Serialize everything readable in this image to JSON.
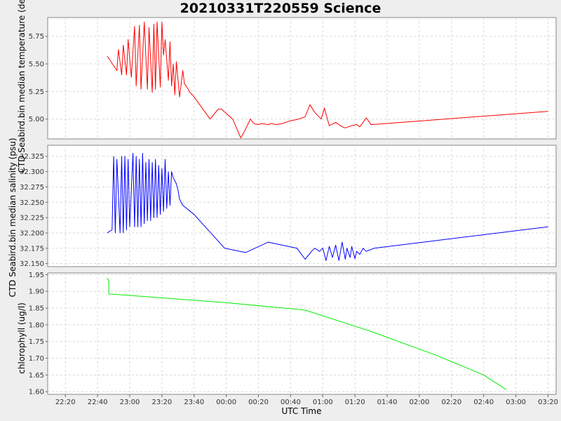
{
  "chart_data": {
    "title": "20210331T220559 Science",
    "type": "line",
    "x_axis": {
      "label": "UTC Time",
      "tick_labels": [
        "22:20",
        "22:40",
        "23:00",
        "23:20",
        "23:40",
        "00:00",
        "00:20",
        "00:40",
        "01:00",
        "01:20",
        "01:40",
        "02:00",
        "02:20",
        "02:40",
        "03:00",
        "03:20"
      ],
      "tick_minutes": [
        -100,
        -80,
        -60,
        -40,
        -20,
        0,
        20,
        40,
        60,
        80,
        100,
        120,
        140,
        160,
        180,
        200
      ],
      "range_minutes": [
        -111,
        205
      ]
    },
    "grid": true,
    "panels": [
      {
        "ylabel": "CTD Seabird.bin median temperature (degC)",
        "ylim": [
          4.82,
          5.92
        ],
        "yticks": [
          5.0,
          5.25,
          5.5,
          5.75
        ],
        "ytick_labels": [
          "5.00",
          "5.25",
          "5.50",
          "5.75"
        ],
        "series": [
          {
            "color": "#ff0000",
            "x": [
              -74,
              -68,
              -67,
              -65,
              -64,
              -62,
              -61,
              -59,
              -57,
              -56,
              -54,
              -53,
              -51,
              -49,
              -48,
              -46,
              -45,
              -44,
              -43,
              -41,
              -40,
              -39,
              -38,
              -36,
              -35,
              -34,
              -33,
              -32,
              -31,
              -29,
              -27,
              -26,
              -25,
              -24,
              -23,
              -20,
              -10,
              -5,
              -3,
              0,
              4,
              9,
              11,
              15,
              17,
              20,
              22,
              26,
              28,
              31,
              35,
              39,
              45,
              49,
              52,
              55,
              59,
              61,
              64,
              68,
              72,
              74,
              76,
              78,
              81,
              83,
              85,
              87,
              90,
              200
            ],
            "y": [
              5.57,
              5.44,
              5.63,
              5.4,
              5.67,
              5.4,
              5.72,
              5.38,
              5.84,
              5.3,
              5.85,
              5.27,
              5.88,
              5.27,
              5.83,
              5.24,
              5.86,
              5.27,
              5.88,
              5.29,
              5.88,
              5.58,
              5.72,
              5.35,
              5.7,
              5.3,
              5.5,
              5.22,
              5.52,
              5.2,
              5.44,
              5.32,
              5.3,
              5.28,
              5.25,
              5.2,
              5.0,
              5.09,
              5.09,
              5.05,
              5.0,
              4.83,
              4.88,
              5.0,
              4.96,
              4.95,
              4.96,
              4.95,
              4.96,
              4.95,
              4.96,
              4.98,
              5.0,
              5.02,
              5.13,
              5.06,
              5.0,
              5.1,
              4.94,
              4.97,
              4.93,
              4.92,
              4.93,
              4.94,
              4.95,
              4.93,
              4.97,
              5.01,
              4.95,
              5.07
            ]
          }
        ]
      },
      {
        "ylabel": "CTD Seabird.bin median salinity (psu)",
        "ylim": [
          32.145,
          32.343
        ],
        "yticks": [
          32.15,
          32.175,
          32.2,
          32.225,
          32.25,
          32.275,
          32.3,
          32.325
        ],
        "ytick_labels": [
          "32.150",
          "32.175",
          "32.200",
          "32.225",
          "32.250",
          "32.275",
          "32.300",
          "32.325"
        ],
        "series": [
          {
            "color": "#0000ff",
            "x": [
              -74,
              -71,
              -70,
              -69,
              -68,
              -66,
              -65,
              -64,
              -63,
              -62,
              -61,
              -60,
              -58,
              -57,
              -56,
              -55,
              -54,
              -53,
              -52,
              -51,
              -50,
              -49,
              -48,
              -47,
              -46,
              -45,
              -44,
              -43,
              -42,
              -41,
              -40,
              -39,
              -38,
              -37,
              -36,
              -35,
              -34,
              -33,
              -31,
              -30,
              -29,
              -27,
              -20,
              -1,
              12,
              26,
              44,
              49,
              53,
              55,
              58,
              60,
              62,
              64,
              66,
              68,
              70,
              72,
              74,
              75,
              77,
              78,
              80,
              81,
              83,
              85,
              87,
              89,
              92,
              200
            ],
            "y": [
              32.2,
              32.205,
              32.325,
              32.2,
              32.32,
              32.2,
              32.325,
              32.2,
              32.325,
              32.205,
              32.32,
              32.21,
              32.33,
              32.21,
              32.325,
              32.21,
              32.32,
              32.21,
              32.33,
              32.215,
              32.315,
              32.22,
              32.32,
              32.22,
              32.315,
              32.225,
              32.32,
              32.225,
              32.31,
              32.23,
              32.305,
              32.235,
              32.32,
              32.24,
              32.3,
              32.245,
              32.3,
              32.29,
              32.28,
              32.27,
              32.255,
              32.245,
              32.23,
              32.175,
              32.168,
              32.185,
              32.175,
              32.157,
              32.17,
              32.175,
              32.17,
              32.175,
              32.155,
              32.178,
              32.16,
              32.18,
              32.155,
              32.185,
              32.157,
              32.175,
              32.16,
              32.178,
              32.158,
              32.17,
              32.165,
              32.175,
              32.17,
              32.172,
              32.175,
              32.21
            ]
          }
        ]
      },
      {
        "ylabel": "chlorophyll (ug/l)",
        "ylim": [
          1.592,
          1.955
        ],
        "yticks": [
          1.6,
          1.65,
          1.7,
          1.75,
          1.8,
          1.85,
          1.9,
          1.95
        ],
        "ytick_labels": [
          "1.60",
          "1.65",
          "1.70",
          "1.75",
          "1.80",
          "1.85",
          "1.90",
          "1.95"
        ],
        "series": [
          {
            "color": "#00ee00",
            "x": [
              -74,
              -73,
              -73,
              -66,
              0,
              49,
              90,
              130,
              160,
              174
            ],
            "y": [
              1.94,
              1.93,
              1.892,
              1.89,
              1.866,
              1.844,
              1.78,
              1.71,
              1.65,
              1.606
            ]
          }
        ]
      }
    ],
    "shared_ylabel": "CTD Seabird.bin median salinity (psu)"
  }
}
